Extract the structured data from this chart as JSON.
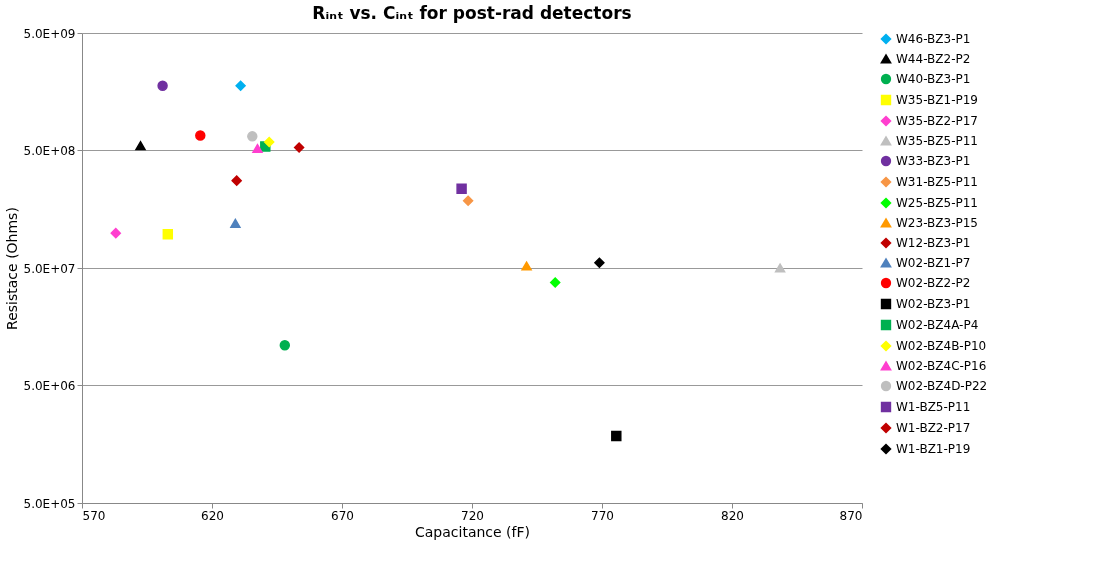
{
  "chart_data": {
    "type": "scatter",
    "title": "Rᵢₙₜ vs. Cᵢₙₜ for post-rad detectors",
    "xlabel": "Capacitance (fF)",
    "ylabel": "Resistace (Ohms)",
    "xlim": [
      570,
      870
    ],
    "xticks": [
      570,
      620,
      670,
      720,
      770,
      820,
      870
    ],
    "ylim": [
      500000,
      5000000000
    ],
    "log": "y",
    "yticks": [
      {
        "value": 500000,
        "label": "5.0E+05"
      },
      {
        "value": 5000000,
        "label": "5.0E+06"
      },
      {
        "value": 50000000,
        "label": "5.0E+07"
      },
      {
        "value": 500000000,
        "label": "5.0E+08"
      },
      {
        "value": 5000000000,
        "label": "5.0E+09"
      }
    ],
    "grid": "y",
    "legend": "right",
    "series": [
      {
        "name": "W46-BZ3-P1",
        "color": "#00b0f0",
        "marker": "diamond",
        "x": [
          631
        ],
        "values": [
          1780000000
        ]
      },
      {
        "name": "W44-BZ2-P2",
        "color": "#000000",
        "marker": "triangle",
        "x": [
          592.5
        ],
        "values": [
          550000000
        ]
      },
      {
        "name": "W40-BZ3-P1",
        "color": "#00b050",
        "marker": "circle",
        "x": [
          648
        ],
        "values": [
          11000000
        ]
      },
      {
        "name": "W35-BZ1-P19",
        "color": "#ffff00",
        "marker": "square",
        "x": [
          603
        ],
        "values": [
          97000000
        ]
      },
      {
        "name": "W35-BZ2-P17",
        "color": "#ff3fcf",
        "marker": "diamond",
        "x": [
          583
        ],
        "values": [
          99000000
        ]
      },
      {
        "name": "W35-BZ5-P11",
        "color": "#bfbfbf",
        "marker": "triangle",
        "x": [
          838.5
        ],
        "values": [
          50000000
        ]
      },
      {
        "name": "W33-BZ3-P1",
        "color": "#7030a0",
        "marker": "circle",
        "x": [
          601
        ],
        "values": [
          1780000000
        ]
      },
      {
        "name": "W31-BZ5-P11",
        "color": "#f79646",
        "marker": "diamond",
        "x": [
          718.5
        ],
        "values": [
          187000000
        ]
      },
      {
        "name": "W25-BZ5-P11",
        "color": "#00ff00",
        "marker": "diamond",
        "x": [
          752
        ],
        "values": [
          37600000
        ]
      },
      {
        "name": "W23-BZ3-P15",
        "color": "#ff9900",
        "marker": "triangle",
        "x": [
          741
        ],
        "values": [
          52000000
        ]
      },
      {
        "name": "W12-BZ3-P1",
        "color": "#c00000",
        "marker": "diamond",
        "x": [
          653.5
        ],
        "values": [
          530000000
        ]
      },
      {
        "name": "W02-BZ1-P7",
        "color": "#4f81bd",
        "marker": "triangle",
        "x": [
          629
        ],
        "values": [
          120000000
        ]
      },
      {
        "name": "W02-BZ2-P2",
        "color": "#ff0000",
        "marker": "circle",
        "x": [
          615.5
        ],
        "values": [
          670000000
        ]
      },
      {
        "name": "W02-BZ3-P1",
        "color": "#000000",
        "marker": "square",
        "x": [
          775.5
        ],
        "values": [
          1860000
        ]
      },
      {
        "name": "W02-BZ4A-P4",
        "color": "#00b050",
        "marker": "square",
        "x": [
          640.5
        ],
        "values": [
          540000000
        ]
      },
      {
        "name": "W02-BZ4B-P10",
        "color": "#ffff00",
        "marker": "diamond",
        "x": [
          642
        ],
        "values": [
          590000000
        ]
      },
      {
        "name": "W02-BZ4C-P16",
        "color": "#ff3fcf",
        "marker": "triangle",
        "x": [
          637.5
        ],
        "values": [
          520000000
        ]
      },
      {
        "name": "W02-BZ4D-P22",
        "color": "#bfbfbf",
        "marker": "circle",
        "x": [
          635.5
        ],
        "values": [
          660000000
        ]
      },
      {
        "name": "W1-BZ5-P11",
        "color": "#7030a0",
        "marker": "square",
        "x": [
          716
        ],
        "values": [
          236000000
        ]
      },
      {
        "name": "W1-BZ2-P17",
        "color": "#c00000",
        "marker": "diamond",
        "x": [
          629.5
        ],
        "values": [
          277000000
        ]
      },
      {
        "name": "W1-BZ1-P19",
        "color": "#000000",
        "marker": "diamond",
        "x": [
          769
        ],
        "values": [
          55500000
        ]
      }
    ]
  }
}
